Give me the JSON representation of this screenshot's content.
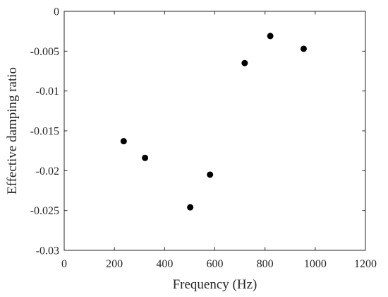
{
  "chart_data": {
    "type": "scatter",
    "title": "",
    "xlabel": "Frequency (Hz)",
    "ylabel": "Effective damping ratio",
    "xlim": [
      0,
      1200
    ],
    "ylim": [
      -0.03,
      0
    ],
    "x_ticks": [
      0,
      200,
      400,
      600,
      800,
      1000,
      1200
    ],
    "y_ticks": [
      -0.03,
      -0.025,
      -0.02,
      -0.015,
      -0.01,
      -0.005,
      0
    ],
    "x_tick_labels": [
      "0",
      "200",
      "400",
      "600",
      "800",
      "1000",
      "1200"
    ],
    "y_tick_labels": [
      "-0.03",
      "-0.025",
      "-0.02",
      "-0.015",
      "-0.01",
      "-0.005",
      "0"
    ],
    "grid": false,
    "series": [
      {
        "marker_color": "#000000",
        "points": [
          {
            "x": 237,
            "y": -0.0163
          },
          {
            "x": 322,
            "y": -0.0184
          },
          {
            "x": 502,
            "y": -0.0246
          },
          {
            "x": 581,
            "y": -0.0205
          },
          {
            "x": 719,
            "y": -0.0065
          },
          {
            "x": 821,
            "y": -0.0031
          },
          {
            "x": 954,
            "y": -0.0047
          }
        ]
      }
    ]
  }
}
